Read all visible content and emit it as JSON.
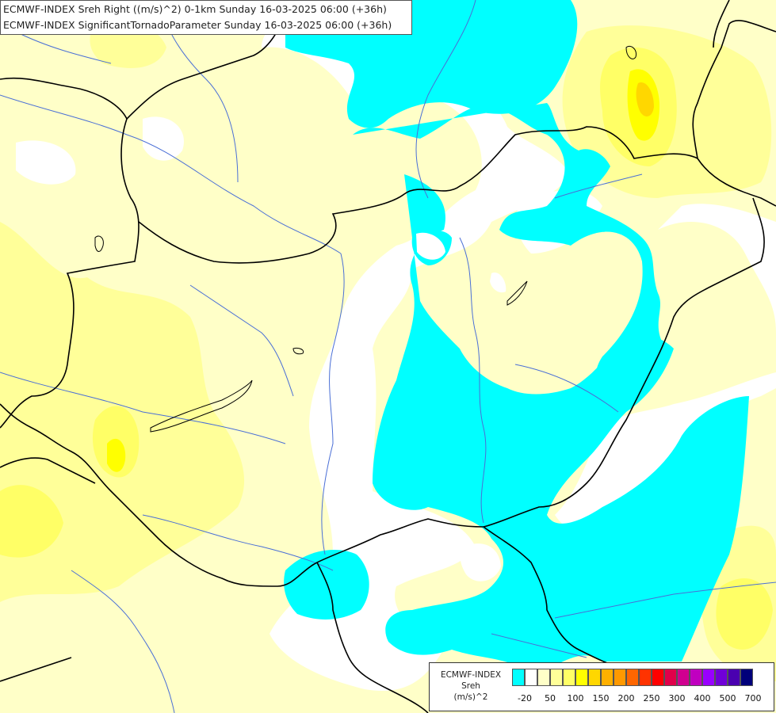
{
  "titles": {
    "line1": "ECMWF-INDEX Sreh Right ((m/s)^2) 0-1km Sunday 16-03-2025 06:00 (+36h)",
    "line2": "ECMWF-INDEX SignificantTornadoParameter Sunday 16-03-2025 06:00 (+36h)"
  },
  "legend": {
    "source": "ECMWF-INDEX",
    "parameter": "Sreh",
    "unit": "(m/s)^2",
    "colors": [
      "#00ffff",
      "#ffffff",
      "#ffffc8",
      "#ffff99",
      "#ffff66",
      "#ffff00",
      "#ffd700",
      "#ffb000",
      "#ff9900",
      "#ff6600",
      "#ff3300",
      "#ff0000",
      "#e0004a",
      "#d00090",
      "#c000c0",
      "#9900ff",
      "#7000d8",
      "#4a00b0",
      "#00007a"
    ],
    "ticks": [
      "-20",
      "50",
      "100",
      "150",
      "200",
      "250",
      "300",
      "400",
      "500",
      "700"
    ]
  },
  "map_colors": {
    "cyan": "#00ffff",
    "white": "#ffffff",
    "pale_yellow": "#ffffc8",
    "light_yellow": "#ffff99",
    "yellow": "#ffff66",
    "strong_yellow": "#ffff00",
    "gold": "#ffd700",
    "border": "#000000",
    "river": "#4a6fd6"
  }
}
